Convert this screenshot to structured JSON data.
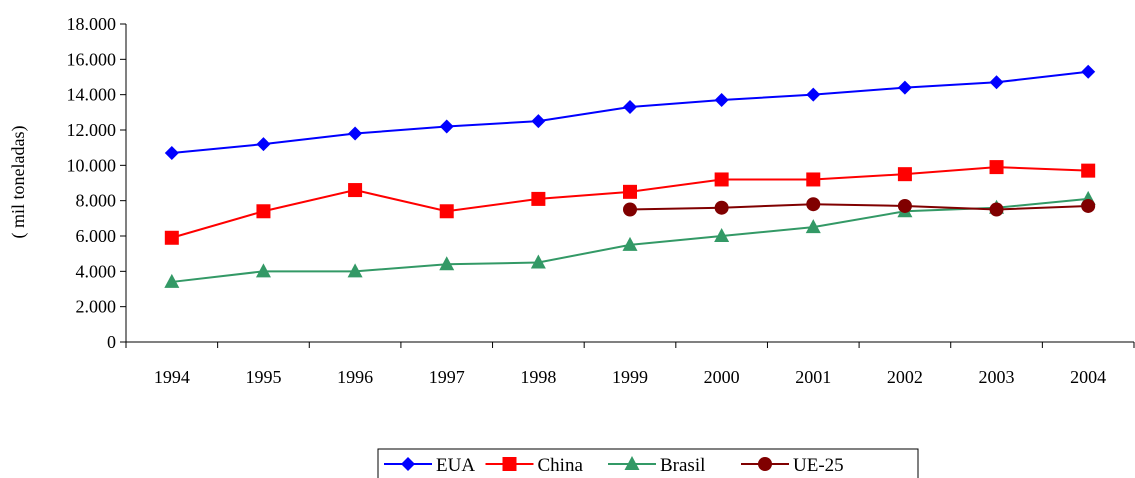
{
  "chart_data": {
    "type": "line",
    "title": "",
    "xlabel": "",
    "ylabel": "( mil toneladas)",
    "ylim": [
      0,
      18000
    ],
    "y_ticks": [
      "0",
      "2.000",
      "4.000",
      "6.000",
      "8.000",
      "10.000",
      "12.000",
      "14.000",
      "16.000",
      "18.000"
    ],
    "grid": false,
    "legend_position": "bottom",
    "categories": [
      "1994",
      "1995",
      "1996",
      "1997",
      "1998",
      "1999",
      "2000",
      "2001",
      "2002",
      "2003",
      "2004"
    ],
    "series": [
      {
        "name": "EUA",
        "color": "#0000FF",
        "marker": "diamond",
        "values": [
          10700,
          11200,
          11800,
          12200,
          12500,
          13300,
          13700,
          14000,
          14400,
          14700,
          15300
        ]
      },
      {
        "name": "China",
        "color": "#FF0000",
        "marker": "square",
        "values": [
          5900,
          7400,
          8600,
          7400,
          8100,
          8500,
          9200,
          9200,
          9500,
          9900,
          9700
        ]
      },
      {
        "name": "Brasil",
        "color": "#339966",
        "marker": "triangle",
        "values": [
          3400,
          4000,
          4000,
          4400,
          4500,
          5500,
          6000,
          6500,
          7400,
          7600,
          8100
        ]
      },
      {
        "name": "UE-25",
        "color": "#800000",
        "marker": "circle",
        "values": [
          null,
          null,
          null,
          null,
          null,
          7500,
          7600,
          7800,
          7700,
          7500,
          7700
        ]
      }
    ]
  }
}
